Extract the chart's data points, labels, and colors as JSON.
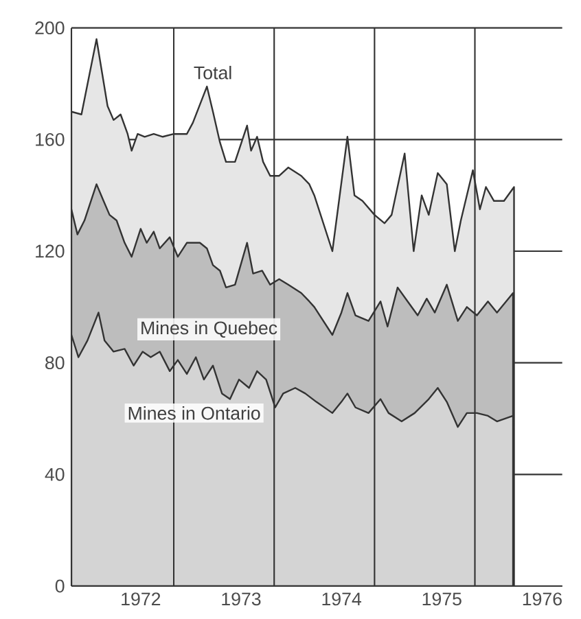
{
  "chart_data": {
    "type": "area",
    "xlim": [
      1971.31,
      1976.2
    ],
    "xticks": [
      1972,
      1973,
      1974,
      1975,
      1976
    ],
    "ylim": [
      0,
      200
    ],
    "yticks": [
      0,
      40,
      80,
      120,
      160,
      200
    ],
    "grid": "y",
    "ref_lines": [
      {
        "axis": "x",
        "value": 1972.33
      },
      {
        "axis": "x",
        "value": 1973.33
      },
      {
        "axis": "x",
        "value": 1974.33
      },
      {
        "axis": "x",
        "value": 1975.33
      }
    ],
    "annotations": [
      {
        "text": "Total",
        "x": 1972.72,
        "y": 184
      },
      "Mines in Quebec",
      "Mines in Ontario"
    ],
    "series": [
      {
        "color": "#e6e6e6",
        "x": [
          1971.31,
          1971.41,
          1971.56,
          1971.67,
          1971.73,
          1971.8,
          1971.87,
          1971.91,
          1971.97,
          1972.04,
          1972.13,
          1972.22,
          1972.33,
          1972.46,
          1972.52,
          1972.66,
          1972.72,
          1972.79,
          1972.85,
          1972.94,
          1973.06,
          1973.1,
          1973.16,
          1973.22,
          1973.29,
          1973.38,
          1973.47,
          1973.6,
          1973.68,
          1973.73,
          1973.91,
          1974.06,
          1974.13,
          1974.21,
          1974.33,
          1974.43,
          1974.5,
          1974.63,
          1974.72,
          1974.8,
          1974.87,
          1974.96,
          1975.05,
          1975.13,
          1975.19,
          1975.31,
          1975.38,
          1975.44,
          1975.52,
          1975.62,
          1975.72
        ],
        "values": [
          170,
          169,
          196,
          172,
          167,
          169,
          162,
          156,
          162,
          161,
          162,
          161,
          162,
          162,
          166,
          179,
          170,
          159,
          152,
          152,
          165,
          156,
          161,
          152,
          147,
          147,
          150,
          147,
          144,
          140,
          120,
          161,
          140,
          138,
          133,
          130,
          133,
          155,
          120,
          140,
          133,
          148,
          144,
          120,
          131,
          149,
          135,
          143,
          138,
          138,
          143
        ]
      },
      {
        "color": "#bdbdbd",
        "x": [
          1971.31,
          1971.37,
          1971.44,
          1971.56,
          1971.63,
          1971.69,
          1971.76,
          1971.84,
          1971.91,
          1972.0,
          1972.06,
          1972.13,
          1972.19,
          1972.29,
          1972.37,
          1972.46,
          1972.59,
          1972.66,
          1972.72,
          1972.79,
          1972.85,
          1972.94,
          1973.06,
          1973.12,
          1973.21,
          1973.29,
          1973.38,
          1973.47,
          1973.6,
          1973.68,
          1973.73,
          1973.91,
          1974.0,
          1974.06,
          1974.14,
          1974.27,
          1974.39,
          1974.46,
          1974.56,
          1974.66,
          1974.76,
          1974.85,
          1974.93,
          1975.05,
          1975.16,
          1975.25,
          1975.35,
          1975.46,
          1975.55,
          1975.71
        ],
        "values": [
          135,
          126,
          131,
          144,
          138,
          133,
          131,
          123,
          118,
          128,
          123,
          127,
          121,
          125,
          118,
          123,
          123,
          121,
          115,
          113,
          107,
          108,
          123,
          112,
          113,
          108,
          110,
          108,
          105,
          102,
          100,
          90,
          98,
          105,
          97,
          95,
          102,
          93,
          107,
          102,
          97,
          103,
          98,
          108,
          95,
          100,
          97,
          102,
          98,
          105
        ]
      },
      {
        "color": "#d4d4d4",
        "x": [
          1971.31,
          1971.38,
          1971.47,
          1971.58,
          1971.64,
          1971.73,
          1971.84,
          1971.93,
          1972.02,
          1972.1,
          1972.19,
          1972.29,
          1972.37,
          1972.46,
          1972.55,
          1972.63,
          1972.72,
          1972.81,
          1972.89,
          1972.98,
          1973.08,
          1973.16,
          1973.25,
          1973.34,
          1973.42,
          1973.54,
          1973.64,
          1973.75,
          1973.91,
          1974.0,
          1974.06,
          1974.14,
          1974.27,
          1974.39,
          1974.47,
          1974.6,
          1974.73,
          1974.87,
          1974.96,
          1975.05,
          1975.16,
          1975.25,
          1975.35,
          1975.46,
          1975.55,
          1975.71
        ],
        "values": [
          90,
          82,
          88,
          98,
          88,
          84,
          85,
          79,
          84,
          82,
          84,
          77,
          81,
          76,
          82,
          74,
          79,
          69,
          67,
          74,
          71,
          77,
          74,
          64,
          69,
          71,
          69,
          66,
          62,
          66,
          69,
          64,
          62,
          67,
          62,
          59,
          62,
          67,
          71,
          66,
          57,
          62,
          62,
          61,
          59,
          61
        ]
      }
    ]
  }
}
